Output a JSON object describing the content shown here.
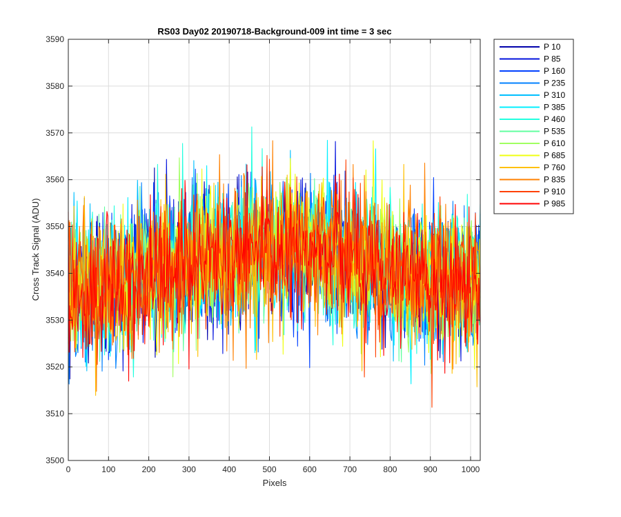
{
  "chart_data": {
    "type": "line",
    "title": "RS03 Day02 20190718-Background-009 int time = 3 sec",
    "xlabel": "Pixels",
    "ylabel": "Cross Track Signal (ADU)",
    "xlim": [
      0,
      1024
    ],
    "ylim": [
      3500,
      3590
    ],
    "xticks": [
      0,
      100,
      200,
      300,
      400,
      500,
      600,
      700,
      800,
      900,
      1000
    ],
    "yticks": [
      3500,
      3510,
      3520,
      3530,
      3540,
      3550,
      3560,
      3570,
      3580,
      3590
    ],
    "grid": true,
    "legend_position": "outside-top-right",
    "noise_profile": {
      "pixels": [
        0,
        100,
        200,
        300,
        400,
        500,
        600,
        700,
        800,
        900,
        1024
      ],
      "center": [
        3536,
        3538,
        3540,
        3542,
        3544,
        3545,
        3545,
        3543,
        3541,
        3539,
        3538
      ],
      "spread": 9,
      "note": "each series is a noisy trace; values fluctuate roughly +/- 3 sigma around the center"
    },
    "series": [
      {
        "name": "P 10",
        "color": "#0000AA"
      },
      {
        "name": "P 85",
        "color": "#0010DD"
      },
      {
        "name": "P 160",
        "color": "#0040FF"
      },
      {
        "name": "P 235",
        "color": "#0080FF"
      },
      {
        "name": "P 310",
        "color": "#00BFFF"
      },
      {
        "name": "P 385",
        "color": "#00EFFF"
      },
      {
        "name": "P 460",
        "color": "#20FFDF"
      },
      {
        "name": "P 535",
        "color": "#60FF9F"
      },
      {
        "name": "P 610",
        "color": "#A0FF60"
      },
      {
        "name": "P 685",
        "color": "#EFFF10"
      },
      {
        "name": "P 760",
        "color": "#FFC000"
      },
      {
        "name": "P 835",
        "color": "#FF8000"
      },
      {
        "name": "P 910",
        "color": "#FF4000"
      },
      {
        "name": "P 985",
        "color": "#FF0000"
      }
    ]
  }
}
